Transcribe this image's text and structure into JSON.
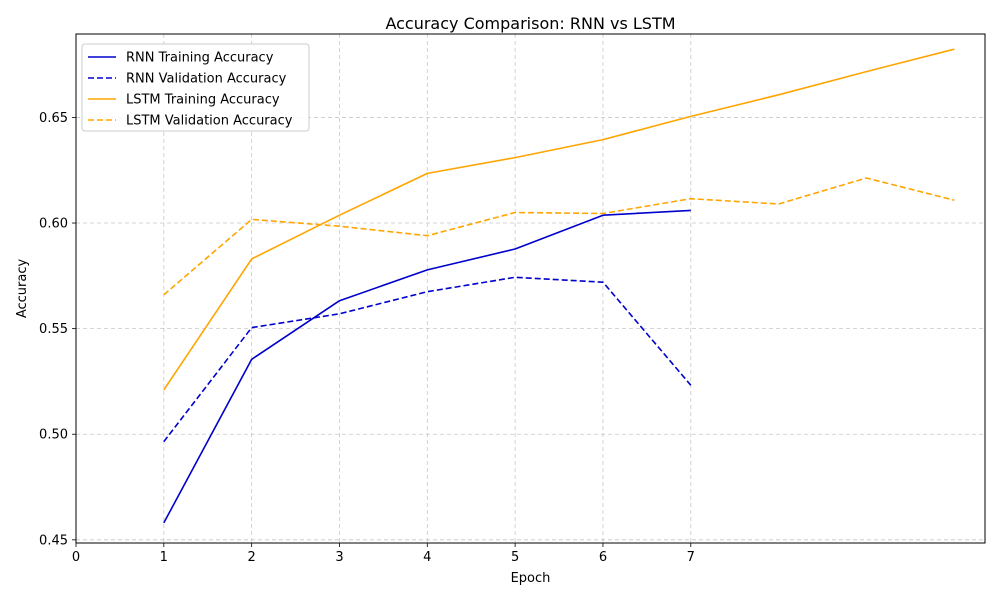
{
  "chart_data": {
    "type": "line",
    "title": "Accuracy Comparison: RNN vs LSTM",
    "xlabel": "Epoch",
    "ylabel": "Accuracy",
    "xlim": [
      0,
      10.35
    ],
    "ylim": [
      0.4485,
      0.6895
    ],
    "xticks": [
      0,
      1,
      2,
      3,
      4,
      5,
      6,
      7
    ],
    "xtick_labels": [
      "0",
      "1",
      "2",
      "3",
      "4",
      "5",
      "6",
      "7"
    ],
    "yticks": [
      0.45,
      0.5,
      0.55,
      0.6,
      0.65
    ],
    "ytick_labels": [
      "0.45",
      "0.50",
      "0.55",
      "0.60",
      "0.65"
    ],
    "grid": true,
    "legend_position": "top-left",
    "series": [
      {
        "name": "RNN Training Accuracy",
        "color": "#0000cd",
        "style": "solid",
        "x": [
          1,
          2,
          3,
          4,
          5,
          6,
          7
        ],
        "y": [
          0.458,
          0.5355,
          0.5632,
          0.5778,
          0.5877,
          0.6037,
          0.606
        ]
      },
      {
        "name": "RNN Validation Accuracy",
        "color": "#0000cd",
        "style": "dashed",
        "x": [
          1,
          2,
          3,
          4,
          5,
          6,
          7
        ],
        "y": [
          0.4965,
          0.5505,
          0.557,
          0.5675,
          0.5743,
          0.572,
          0.5232
        ]
      },
      {
        "name": "LSTM Training Accuracy",
        "color": "#ffa500",
        "style": "solid",
        "x": [
          1,
          2,
          3,
          4,
          5,
          6,
          7,
          8,
          9,
          10
        ],
        "y": [
          0.521,
          0.583,
          0.6037,
          0.6235,
          0.631,
          0.6395,
          0.6505,
          0.6607,
          0.6717,
          0.6823
        ]
      },
      {
        "name": "LSTM Validation Accuracy",
        "color": "#ffa500",
        "style": "dashed",
        "x": [
          1,
          2,
          3,
          4,
          5,
          6,
          7,
          8,
          9,
          10
        ],
        "y": [
          0.566,
          0.6017,
          0.5985,
          0.594,
          0.605,
          0.6045,
          0.6115,
          0.609,
          0.6213,
          0.6108
        ]
      }
    ]
  }
}
